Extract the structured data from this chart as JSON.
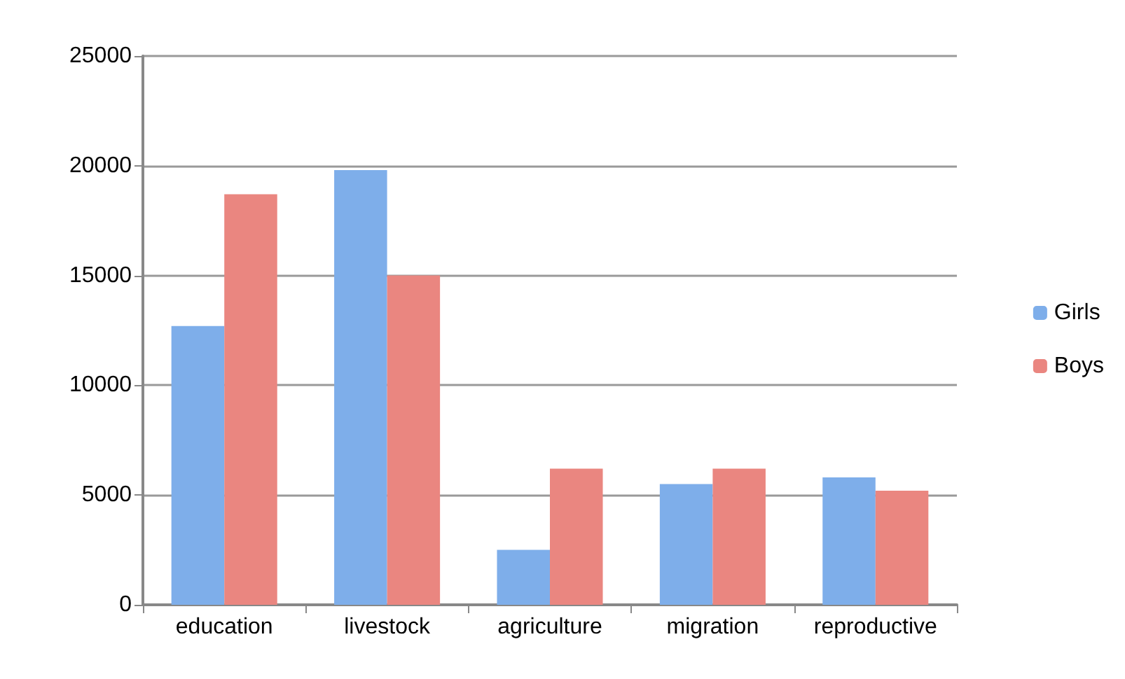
{
  "chart_data": {
    "type": "bar",
    "categories": [
      "education",
      "livestock",
      "agriculture",
      "migration",
      "reproductive"
    ],
    "series": [
      {
        "name": "Girls",
        "color": "#7eaeea",
        "values": [
          12700,
          19800,
          2500,
          5500,
          5800
        ]
      },
      {
        "name": "Boys",
        "color": "#ea8680",
        "values": [
          18700,
          15000,
          6200,
          6200,
          5200
        ]
      }
    ],
    "ylim": [
      0,
      25000
    ],
    "yticks": [
      0,
      5000,
      10000,
      15000,
      20000,
      25000
    ],
    "grid": "y",
    "legend": "right"
  }
}
